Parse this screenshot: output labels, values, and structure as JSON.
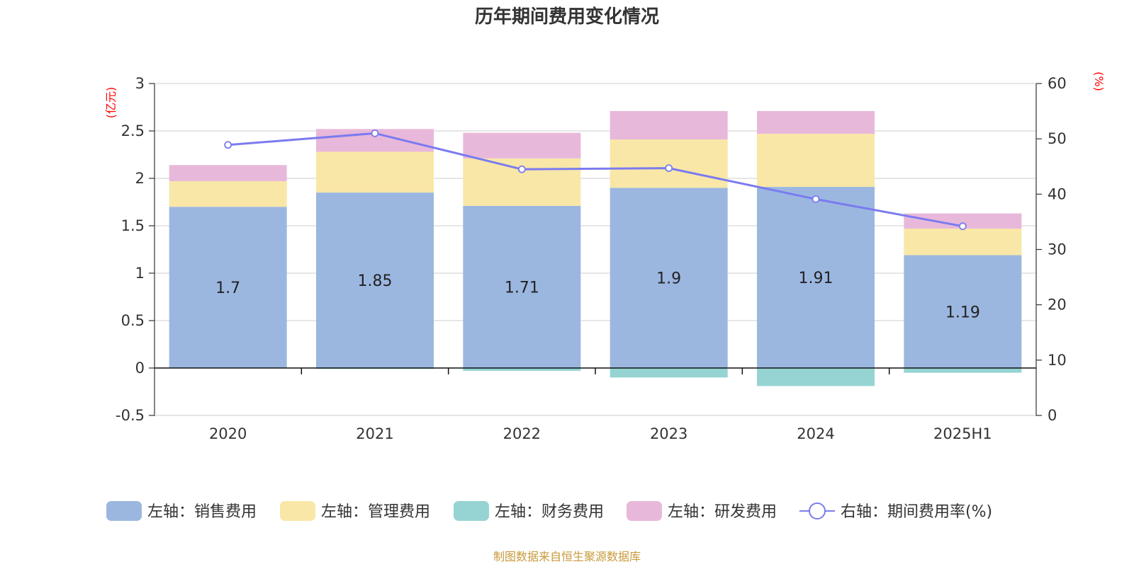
{
  "chart_data": {
    "type": "bar",
    "stacked": true,
    "title": "历年期间费用变化情况",
    "categories": [
      "2020",
      "2021",
      "2022",
      "2023",
      "2024",
      "2025H1"
    ],
    "y_left": {
      "unit_label": "(亿元)",
      "ylim": [
        -0.5,
        3
      ],
      "ticks": [
        "3",
        "2.5",
        "2",
        "1.5",
        "1",
        "0.5",
        "0",
        "-0.5"
      ],
      "tick_values": [
        3,
        2.5,
        2,
        1.5,
        1,
        0.5,
        0,
        -0.5
      ]
    },
    "y_right": {
      "unit_label": "(%)",
      "ylim": [
        0,
        60
      ],
      "ticks": [
        "60",
        "50",
        "40",
        "30",
        "20",
        "10",
        "0"
      ],
      "tick_values": [
        60,
        50,
        40,
        30,
        20,
        10,
        0
      ]
    },
    "series": [
      {
        "name": "左轴：销售费用",
        "axis": "left",
        "type": "bar",
        "color": "#9bb7e0",
        "values": [
          1.7,
          1.85,
          1.71,
          1.9,
          1.91,
          1.19
        ],
        "show_labels": true,
        "labels": [
          "1.7",
          "1.85",
          "1.71",
          "1.9",
          "1.91",
          "1.19"
        ]
      },
      {
        "name": "左轴：管理费用",
        "axis": "left",
        "type": "bar",
        "color": "#f8e7a7",
        "values": [
          0.27,
          0.43,
          0.5,
          0.51,
          0.56,
          0.28
        ]
      },
      {
        "name": "左轴：财务费用",
        "axis": "left",
        "type": "bar",
        "color": "#95d4d3",
        "values": [
          0.0,
          -0.01,
          -0.03,
          -0.1,
          -0.19,
          -0.05
        ]
      },
      {
        "name": "左轴：研发费用",
        "axis": "left",
        "type": "bar",
        "color": "#e8b8da",
        "values": [
          0.17,
          0.24,
          0.27,
          0.3,
          0.24,
          0.16
        ]
      },
      {
        "name": "右轴：期间费用率(%)",
        "axis": "right",
        "type": "line",
        "color": "#7b7bef",
        "values": [
          48.9,
          51.0,
          44.5,
          44.7,
          39.1,
          34.2
        ]
      }
    ],
    "legend_position": "bottom",
    "grid": true
  },
  "footer": {
    "source": "制图数据来自恒生聚源数据库"
  },
  "colors": {
    "title": "#333333",
    "axis_unit": "#ff0000",
    "footer": "#c79a3a",
    "grid": "#cccccc",
    "axis": "#333333"
  }
}
